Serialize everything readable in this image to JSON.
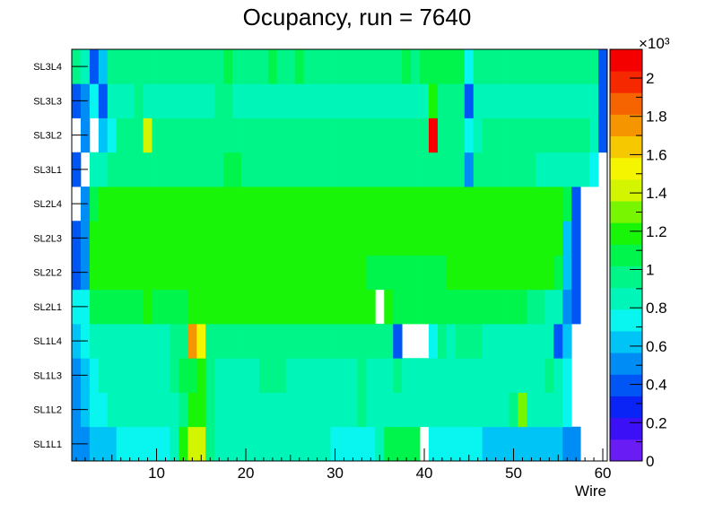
{
  "title": "Ocupancy, run = 7640",
  "chart_data": {
    "type": "heatmap",
    "title": "Ocupancy, run = 7640",
    "xlabel": "Wire",
    "ylabel": "",
    "xlim": [
      0.5,
      60.5
    ],
    "x_ticks": [
      10,
      20,
      30,
      40,
      50,
      60
    ],
    "rows": [
      "SL1L1",
      "SL1L2",
      "SL1L3",
      "SL1L4",
      "SL2L1",
      "SL2L2",
      "SL2L3",
      "SL2L4",
      "SL3L1",
      "SL3L2",
      "SL3L3",
      "SL3L4"
    ],
    "color_axis": {
      "min": 0,
      "max": 2.15,
      "multiplier_label": "×10³",
      "tick_labels": [
        "0",
        "0.2",
        "0.4",
        "0.6",
        "0.8",
        "1",
        "1.2",
        "1.4",
        "1.6",
        "1.8",
        "2"
      ],
      "palette": [
        "#6a1cf5",
        "#3c10f6",
        "#0a24f5",
        "#0056f5",
        "#008cf5",
        "#00c4f5",
        "#08f5f0",
        "#00f5b8",
        "#00f588",
        "#00f54c",
        "#18f508",
        "#78f500",
        "#d4f500",
        "#f5f500",
        "#f5c800",
        "#f59600",
        "#f56400",
        "#f52800",
        "#f50000"
      ]
    },
    "values": [
      [
        0.46,
        0.46,
        0.58,
        0.58,
        0.58,
        0.78,
        0.78,
        0.78,
        0.78,
        0.78,
        0.78,
        0.82,
        1.21,
        1.41,
        1.38,
        0.98,
        0.82,
        0.82,
        0.82,
        0.82,
        0.82,
        0.82,
        0.82,
        0.82,
        0.82,
        0.82,
        0.82,
        0.82,
        0.82,
        0.78,
        0.78,
        0.78,
        0.78,
        0.78,
        0.82,
        1.08,
        1.08,
        1.08,
        1.08,
        null,
        0.78,
        0.78,
        0.78,
        0.78,
        0.78,
        0.78,
        0.58,
        0.58,
        0.58,
        0.58,
        0.58,
        0.58,
        0.58,
        0.58,
        0.58,
        0.46,
        0.46,
        null,
        null,
        null
      ],
      [
        0.46,
        0.58,
        0.72,
        0.72,
        0.8,
        0.8,
        0.85,
        0.85,
        0.85,
        0.85,
        0.85,
        0.85,
        0.95,
        1.16,
        1.16,
        0.95,
        0.88,
        0.88,
        0.88,
        0.88,
        0.88,
        0.88,
        0.88,
        0.88,
        0.88,
        0.88,
        0.88,
        0.88,
        0.88,
        0.88,
        0.88,
        0.88,
        0.95,
        0.88,
        0.88,
        0.88,
        0.88,
        0.88,
        0.88,
        0.88,
        0.82,
        0.85,
        0.85,
        0.85,
        0.85,
        0.85,
        0.85,
        0.88,
        0.88,
        0.95,
        1.28,
        0.85,
        0.85,
        0.85,
        0.85,
        0.72,
        null,
        null,
        null,
        null
      ],
      [
        0.46,
        0.58,
        0.72,
        0.8,
        0.8,
        0.88,
        0.88,
        0.88,
        0.88,
        0.88,
        0.88,
        0.95,
        1.1,
        1.12,
        1.22,
        0.95,
        0.88,
        0.88,
        0.88,
        0.88,
        0.88,
        0.95,
        0.95,
        0.95,
        0.88,
        0.88,
        0.88,
        0.88,
        0.88,
        0.88,
        0.88,
        0.88,
        1.0,
        0.88,
        0.88,
        0.88,
        0.95,
        0.88,
        0.88,
        0.88,
        0.88,
        0.88,
        0.88,
        0.88,
        0.88,
        0.88,
        0.88,
        0.88,
        0.88,
        0.88,
        0.88,
        0.88,
        0.88,
        1.0,
        0.88,
        0.72,
        null,
        null,
        null,
        null
      ],
      [
        0.58,
        0.72,
        0.85,
        0.85,
        0.85,
        0.85,
        0.85,
        0.85,
        0.85,
        0.85,
        0.85,
        0.92,
        0.92,
        1.72,
        1.52,
        0.98,
        0.92,
        0.92,
        0.92,
        0.92,
        0.92,
        0.92,
        0.92,
        0.92,
        0.92,
        0.92,
        0.92,
        0.92,
        0.92,
        0.92,
        0.92,
        0.92,
        0.98,
        0.98,
        0.98,
        0.98,
        0.42,
        null,
        null,
        null,
        0.78,
        0.92,
        0.85,
        0.92,
        0.92,
        0.92,
        0.85,
        0.85,
        0.85,
        0.85,
        0.85,
        0.85,
        0.85,
        0.85,
        0.36,
        0.62,
        null,
        null,
        null,
        null
      ],
      [
        0.78,
        0.78,
        1.06,
        1.06,
        1.06,
        1.06,
        1.06,
        1.06,
        1.14,
        1.06,
        1.06,
        1.06,
        1.06,
        1.14,
        1.14,
        1.14,
        1.14,
        1.14,
        1.14,
        1.14,
        1.14,
        1.14,
        1.14,
        1.14,
        1.14,
        1.14,
        1.14,
        1.14,
        1.14,
        1.14,
        1.14,
        1.14,
        1.14,
        1.14,
        null,
        1.14,
        1.06,
        1.06,
        1.06,
        1.06,
        1.06,
        1.06,
        1.06,
        1.06,
        1.06,
        1.06,
        1.06,
        1.06,
        1.06,
        1.06,
        1.06,
        0.98,
        0.98,
        0.88,
        0.88,
        0.55,
        0.42,
        null,
        null,
        null
      ],
      [
        0.42,
        0.55,
        1.14,
        1.14,
        1.14,
        1.14,
        1.14,
        1.14,
        1.14,
        1.14,
        1.14,
        1.14,
        1.14,
        1.14,
        1.14,
        1.14,
        1.22,
        1.22,
        1.22,
        1.14,
        1.14,
        1.14,
        1.14,
        1.14,
        1.14,
        1.14,
        1.14,
        1.14,
        1.14,
        1.14,
        1.14,
        1.14,
        1.14,
        1.06,
        1.06,
        1.06,
        1.06,
        1.06,
        1.06,
        1.06,
        1.06,
        1.06,
        1.14,
        1.14,
        1.14,
        1.14,
        1.14,
        1.14,
        1.14,
        1.14,
        1.14,
        1.14,
        1.14,
        1.14,
        1.06,
        0.65,
        0.42,
        null,
        null,
        null
      ],
      [
        0.42,
        0.55,
        1.14,
        1.14,
        1.14,
        1.14,
        1.14,
        1.14,
        1.22,
        1.14,
        1.14,
        1.14,
        1.14,
        1.14,
        1.22,
        1.22,
        1.22,
        1.22,
        1.22,
        1.14,
        1.14,
        1.14,
        1.14,
        1.14,
        1.14,
        1.14,
        1.14,
        1.14,
        1.14,
        1.14,
        1.14,
        1.14,
        1.14,
        1.14,
        1.14,
        1.14,
        1.14,
        1.14,
        1.14,
        1.14,
        1.14,
        1.14,
        1.14,
        1.14,
        1.14,
        1.14,
        1.14,
        1.14,
        1.14,
        1.14,
        1.14,
        1.14,
        1.14,
        1.14,
        1.14,
        0.65,
        0.42,
        null,
        null,
        null
      ],
      [
        null,
        0.55,
        1.06,
        1.14,
        1.14,
        1.14,
        1.14,
        1.14,
        1.14,
        1.14,
        1.14,
        1.14,
        1.14,
        1.14,
        1.14,
        1.14,
        1.14,
        1.14,
        1.14,
        1.14,
        1.14,
        1.14,
        1.14,
        1.14,
        1.14,
        1.14,
        1.14,
        1.14,
        1.14,
        1.14,
        1.14,
        1.14,
        1.14,
        1.14,
        1.14,
        1.14,
        1.14,
        1.14,
        1.14,
        1.14,
        1.14,
        1.14,
        1.14,
        1.14,
        1.14,
        1.14,
        1.14,
        1.14,
        1.14,
        1.14,
        1.14,
        1.14,
        1.14,
        1.14,
        1.14,
        1.06,
        0.42,
        null,
        null,
        null
      ],
      [
        0.42,
        null,
        0.85,
        0.85,
        0.92,
        0.92,
        0.92,
        0.92,
        0.92,
        0.92,
        0.92,
        0.92,
        0.92,
        0.98,
        0.98,
        0.98,
        0.98,
        1.06,
        1.06,
        0.98,
        0.98,
        0.98,
        0.98,
        0.98,
        0.98,
        0.98,
        0.98,
        0.98,
        0.98,
        0.98,
        0.98,
        0.98,
        0.98,
        0.98,
        0.98,
        0.98,
        0.98,
        0.98,
        0.98,
        0.98,
        0.98,
        0.98,
        0.98,
        0.98,
        0.55,
        0.92,
        0.92,
        0.92,
        0.92,
        0.92,
        0.92,
        0.92,
        0.85,
        0.85,
        0.85,
        0.85,
        0.85,
        0.85,
        0.78,
        null
      ],
      [
        null,
        0.55,
        null,
        0.58,
        0.78,
        0.92,
        0.92,
        0.92,
        1.38,
        0.92,
        0.92,
        0.92,
        0.92,
        0.92,
        0.92,
        0.92,
        0.92,
        0.92,
        0.92,
        0.92,
        0.92,
        0.92,
        0.92,
        0.92,
        0.92,
        0.92,
        0.92,
        0.92,
        0.92,
        0.92,
        0.92,
        0.92,
        0.92,
        0.92,
        0.92,
        0.92,
        0.92,
        0.92,
        0.92,
        0.92,
        2.1,
        0.92,
        0.92,
        0.92,
        0.78,
        0.85,
        0.92,
        0.92,
        0.92,
        0.92,
        0.92,
        0.92,
        0.92,
        0.92,
        0.92,
        0.92,
        0.92,
        0.92,
        0.85,
        0.42
      ],
      [
        0.42,
        0.55,
        0.72,
        0.36,
        0.88,
        0.88,
        0.88,
        0.95,
        0.88,
        0.88,
        0.88,
        0.88,
        0.88,
        0.88,
        0.88,
        0.88,
        0.95,
        0.95,
        0.88,
        0.88,
        0.88,
        0.88,
        0.88,
        0.88,
        0.88,
        0.88,
        0.88,
        0.88,
        0.88,
        0.88,
        0.88,
        0.88,
        0.88,
        0.88,
        0.88,
        0.88,
        0.88,
        0.88,
        0.88,
        0.88,
        1.14,
        0.95,
        0.92,
        0.92,
        0.42,
        0.88,
        0.85,
        0.85,
        0.88,
        0.88,
        0.88,
        0.88,
        0.88,
        0.88,
        0.88,
        0.88,
        0.88,
        0.88,
        0.88,
        0.36
      ],
      [
        0.98,
        0.85,
        0.42,
        0.58,
        0.92,
        0.92,
        0.92,
        0.92,
        0.92,
        0.92,
        0.92,
        0.92,
        0.92,
        0.92,
        0.92,
        0.95,
        0.95,
        1.06,
        0.92,
        0.92,
        0.92,
        0.92,
        1.06,
        0.92,
        0.92,
        1.06,
        0.92,
        0.92,
        0.92,
        0.92,
        0.92,
        0.92,
        0.92,
        0.92,
        0.92,
        0.92,
        0.92,
        1.06,
        0.92,
        1.06,
        1.06,
        1.06,
        1.06,
        1.06,
        0.78,
        0.92,
        0.92,
        0.92,
        0.92,
        0.92,
        0.92,
        0.92,
        0.92,
        0.92,
        0.92,
        0.92,
        0.92,
        0.92,
        0.92,
        0.42
      ]
    ]
  }
}
